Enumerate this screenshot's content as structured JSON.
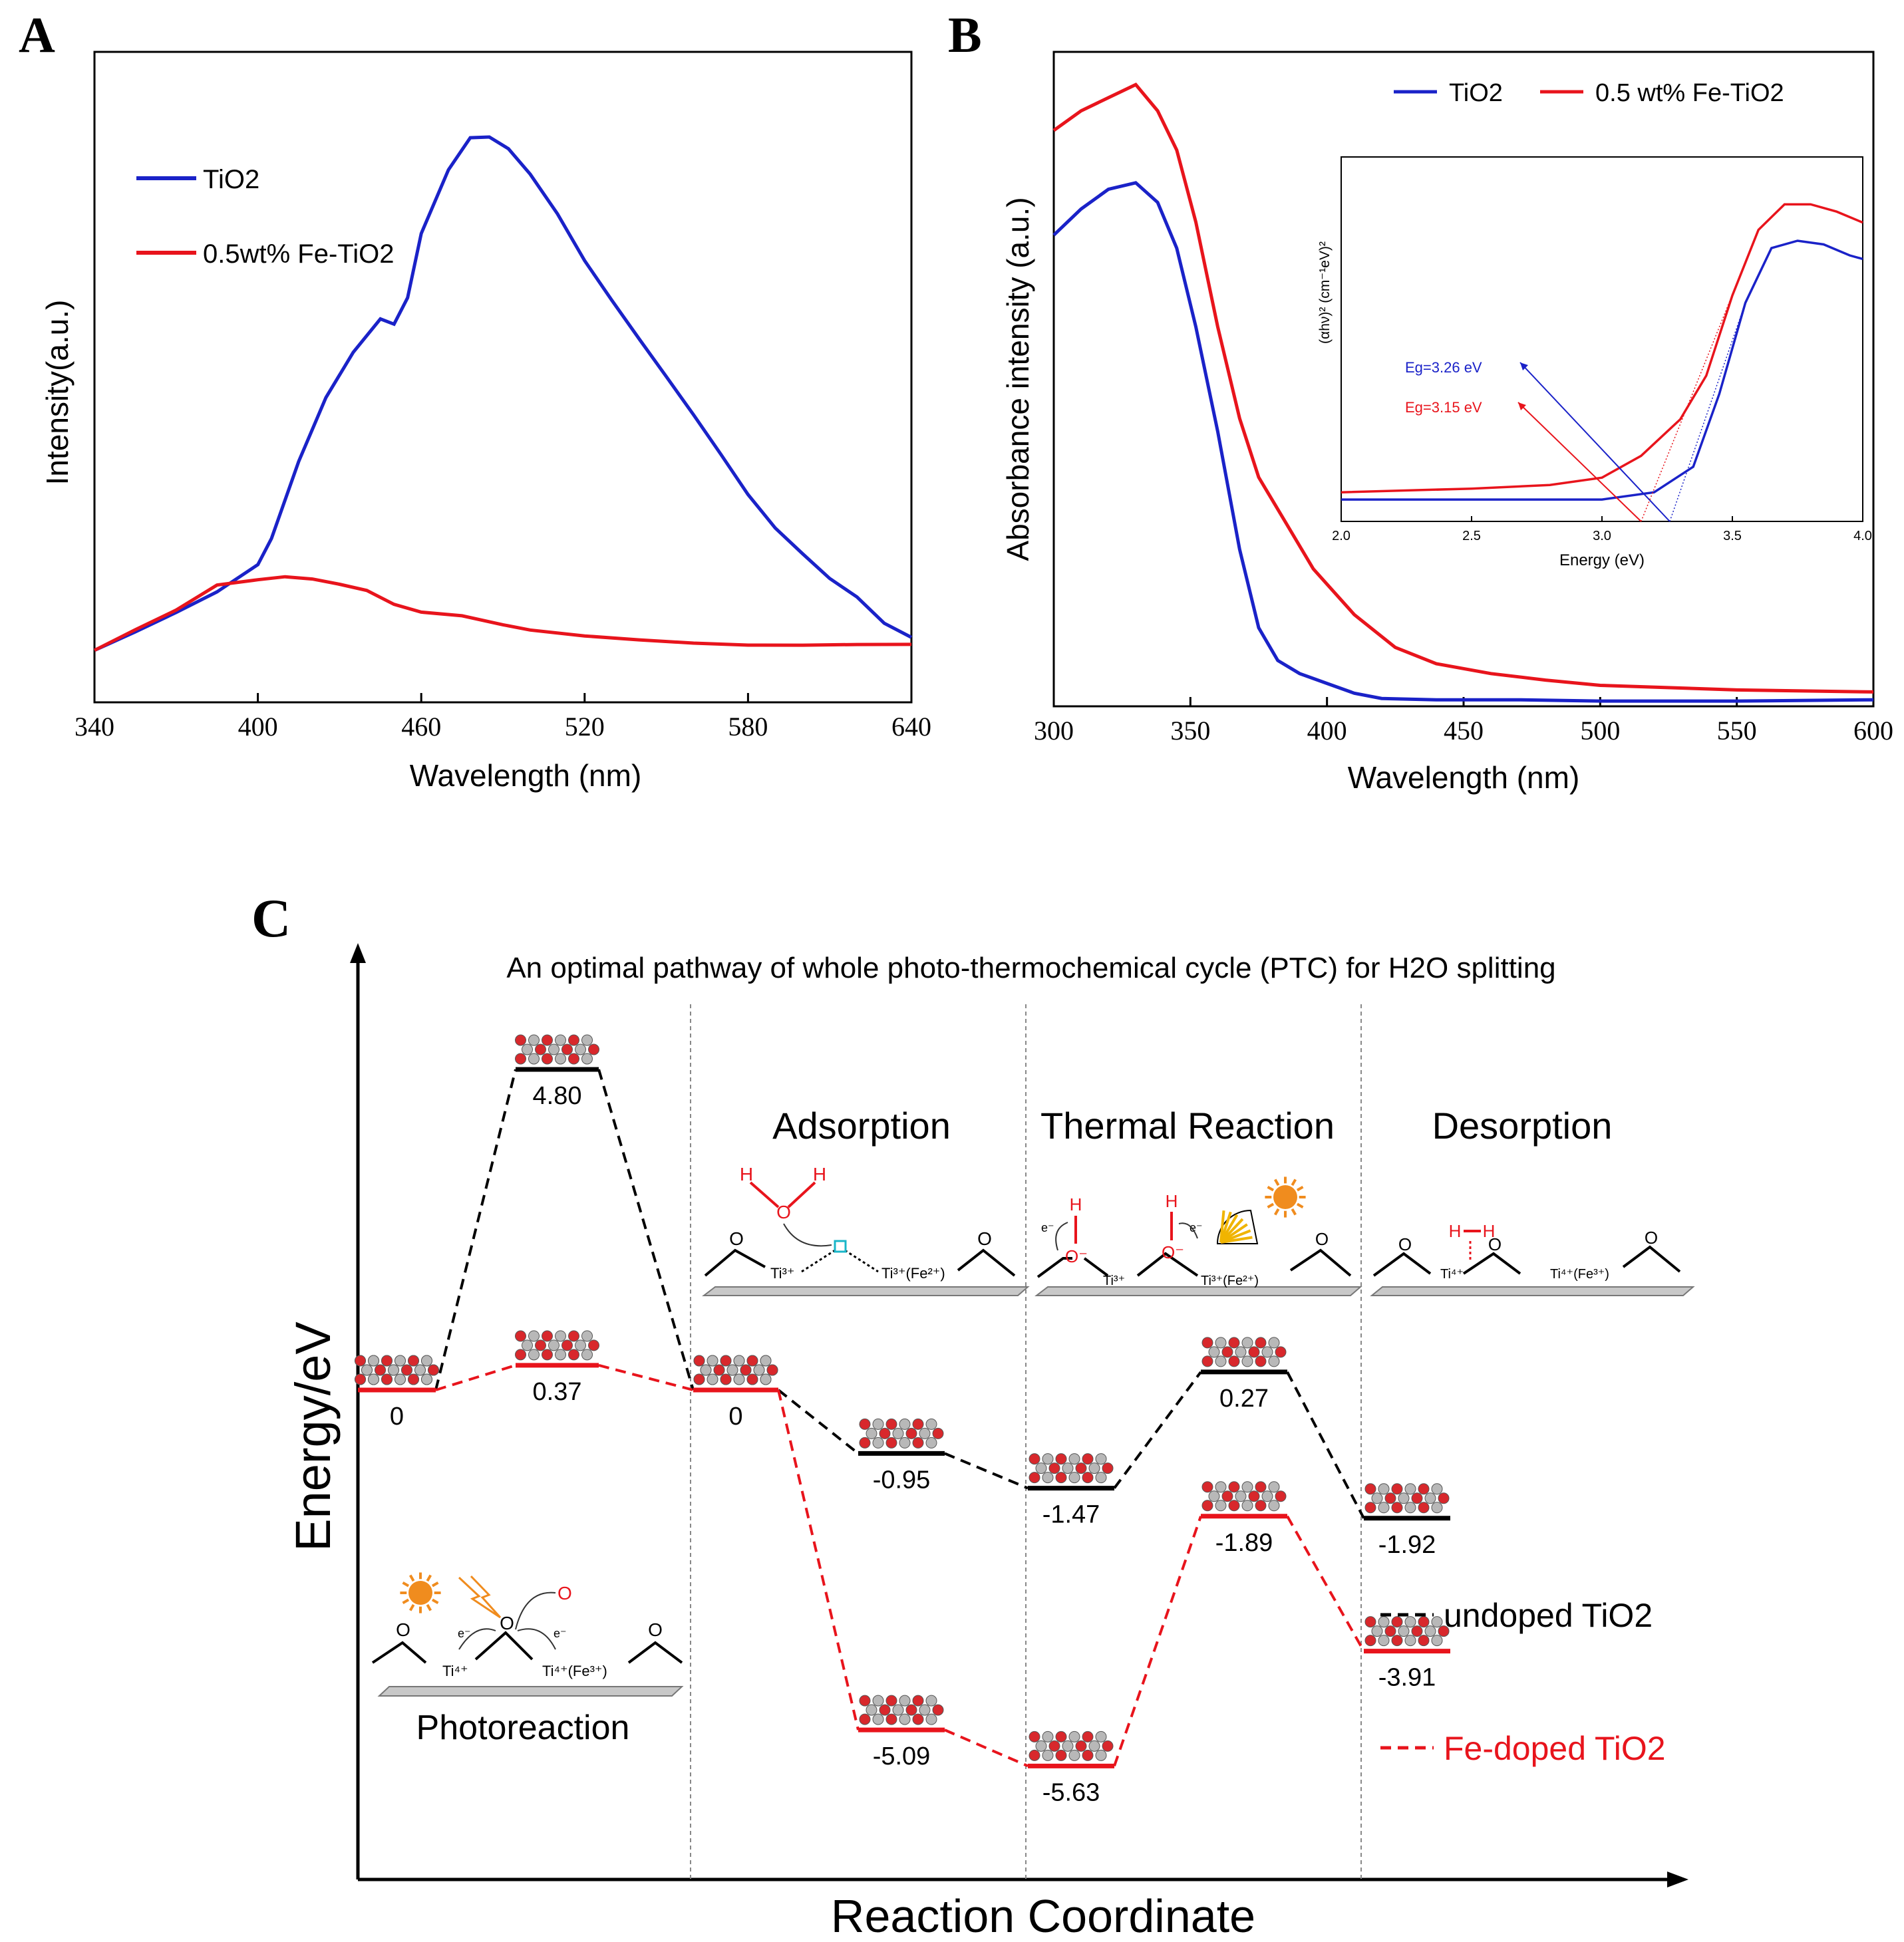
{
  "panels": {
    "a": "A",
    "b": "B",
    "c": "C"
  },
  "colors": {
    "blue": "#1a22c8",
    "red": "#e8141c",
    "black": "#000000",
    "gray": "#888888",
    "cyan": "#19b6c8",
    "sun": "#f08c1e"
  },
  "chart_data": [
    {
      "id": "A",
      "type": "line",
      "title": "",
      "xlabel": "Wavelength (nm)",
      "ylabel": "Intensity(a.u.)",
      "xlim": [
        340,
        640
      ],
      "ylim": [
        0,
        100
      ],
      "xticks": [
        "340",
        "400",
        "460",
        "520",
        "580",
        "640"
      ],
      "legend": "top-left",
      "series": [
        {
          "name": "TiO2",
          "color": "blue",
          "x": [
            340,
            355,
            370,
            385,
            400,
            405,
            415,
            425,
            435,
            445,
            450,
            455,
            460,
            470,
            478,
            485,
            492,
            500,
            510,
            520,
            530,
            540,
            550,
            560,
            570,
            580,
            590,
            600,
            610,
            620,
            630,
            640
          ],
          "y": [
            8,
            11,
            14,
            17,
            21,
            25,
            37,
            47,
            54,
            59,
            58,
            62,
            72,
            82,
            87,
            87,
            85,
            81,
            75,
            68,
            62,
            56,
            50,
            44,
            38,
            32,
            27,
            23,
            19,
            16,
            12,
            10
          ]
        },
        {
          "name": "0.5wt% Fe-TiO2",
          "color": "red",
          "x": [
            340,
            355,
            370,
            385,
            400,
            410,
            420,
            430,
            440,
            450,
            460,
            475,
            490,
            500,
            520,
            540,
            560,
            580,
            600,
            620,
            640
          ],
          "y": [
            8,
            11,
            14,
            18,
            19,
            19.5,
            19,
            18,
            17,
            15,
            14,
            13.5,
            12,
            11,
            10,
            9.5,
            9.2,
            9,
            8.9,
            8.8,
            8.7
          ]
        }
      ]
    },
    {
      "id": "B",
      "type": "line",
      "title": "",
      "xlabel": "Wavelength (nm)",
      "ylabel": "Absorbance intensity (a.u.)",
      "xlim": [
        300,
        600
      ],
      "ylim": [
        0,
        100
      ],
      "xticks": [
        "300",
        "350",
        "400",
        "450",
        "500",
        "550",
        "600"
      ],
      "legend": "top-right",
      "series": [
        {
          "name": "TiO2",
          "color": "blue",
          "x": [
            300,
            310,
            320,
            330,
            338,
            345,
            352,
            360,
            368,
            375,
            382,
            390,
            400,
            410,
            420,
            440,
            470,
            500,
            550,
            600
          ],
          "y": [
            72,
            76,
            79,
            80,
            77,
            70,
            58,
            42,
            24,
            12,
            7,
            5,
            3.5,
            2,
            1.2,
            1.0,
            1.0,
            0.8,
            0.8,
            1.0
          ]
        },
        {
          "name": "0.5 wt% Fe-TiO2",
          "color": "red",
          "x": [
            300,
            310,
            320,
            330,
            338,
            345,
            352,
            360,
            368,
            375,
            385,
            395,
            410,
            425,
            440,
            460,
            480,
            500,
            550,
            600
          ],
          "y": [
            88,
            91,
            93,
            95,
            91,
            85,
            74,
            58,
            44,
            35,
            28,
            21,
            14,
            9,
            6.5,
            5,
            4,
            3.2,
            2.5,
            2.2
          ]
        }
      ],
      "inset": {
        "type": "line",
        "xlabel": "Energy (eV)",
        "ylabel": "(αhν)² (cm⁻¹eV)²",
        "xlim": [
          2.0,
          4.0
        ],
        "ylim": [
          0,
          100
        ],
        "xticks": [
          "2.0",
          "2.5",
          "3.0",
          "3.5",
          "4.0"
        ],
        "annotations": [
          {
            "label": "Eg=3.26 eV",
            "color": "blue",
            "intercept": 3.26
          },
          {
            "label": "Eg=3.15 eV",
            "color": "red",
            "intercept": 3.15
          }
        ],
        "series": [
          {
            "name": "TiO2",
            "color": "blue",
            "x": [
              2.0,
              2.5,
              3.0,
              3.2,
              3.35,
              3.45,
              3.55,
              3.65,
              3.75,
              3.85,
              3.95,
              4.0
            ],
            "y": [
              6,
              6,
              6,
              8,
              15,
              35,
              60,
              75,
              77,
              76,
              73,
              72
            ]
          },
          {
            "name": "0.5 wt% Fe-TiO2",
            "color": "red",
            "x": [
              2.0,
              2.5,
              2.8,
              3.0,
              3.15,
              3.3,
              3.4,
              3.5,
              3.6,
              3.7,
              3.8,
              3.9,
              4.0
            ],
            "y": [
              8,
              9,
              10,
              12,
              18,
              28,
              40,
              62,
              80,
              87,
              87,
              85,
              82
            ]
          }
        ]
      }
    },
    {
      "id": "C",
      "type": "line",
      "title": "An optimal pathway of whole photo-thermochemical cycle (PTC) for H2O splitting",
      "xlabel": "Reaction Coordinate",
      "ylabel": "Energy/eV",
      "sections": [
        "Photoreaction",
        "Adsorption",
        "Thermal Reaction",
        "Desorption"
      ],
      "ylim": [
        -6.2,
        5.6
      ],
      "legend": "bottom-right",
      "series": [
        {
          "name": "undoped TiO2",
          "color": "black",
          "values": [
            0,
            4.8,
            0,
            -0.95,
            -1.47,
            0.27,
            -1.92
          ],
          "labels": [
            "0",
            "4.80",
            "0",
            "-0.95",
            "-1.47",
            "0.27",
            "-1.92"
          ]
        },
        {
          "name": "Fe-doped TiO2",
          "color": "red",
          "values": [
            0,
            0.37,
            0,
            -5.09,
            -5.63,
            -1.89,
            -3.91
          ],
          "labels": [
            "",
            "0.37",
            "",
            "-5.09",
            "-5.63",
            "-1.89",
            "-3.91"
          ]
        }
      ]
    }
  ],
  "schemes": {
    "photoreaction": {
      "ti1": "Ti⁴⁺",
      "ti2": "Ti⁴⁺(Fe³⁺)",
      "o": "O",
      "e": "e⁻",
      "oprod": "O"
    },
    "adsorption": {
      "h": "H",
      "o": "O",
      "ti1": "Ti³⁺",
      "ti2": "Ti³⁺(Fe²⁺)"
    },
    "thermal": {
      "h": "H",
      "o": "O⁻",
      "ti1": "Ti³⁺",
      "ti2": "Ti³⁺(Fe²⁺)",
      "e": "e⁻"
    },
    "desorption": {
      "h": "H",
      "ti1": "Ti⁴⁺",
      "ti2": "Ti⁴⁺(Fe³⁺)"
    }
  }
}
